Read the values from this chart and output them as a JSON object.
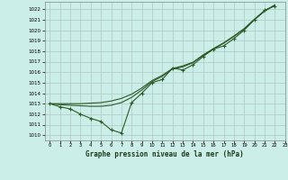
{
  "title": "Graphe pression niveau de la mer (hPa)",
  "background_color": "#cceee8",
  "grid_color": "#b0c8c4",
  "line_color": "#2d5a27",
  "xlim": [
    -0.5,
    23
  ],
  "ylim": [
    1009.5,
    1022.7
  ],
  "yticks": [
    1010,
    1011,
    1012,
    1013,
    1014,
    1015,
    1016,
    1017,
    1018,
    1019,
    1020,
    1021,
    1022
  ],
  "xticks": [
    0,
    1,
    2,
    3,
    4,
    5,
    6,
    7,
    8,
    9,
    10,
    11,
    12,
    13,
    14,
    15,
    16,
    17,
    18,
    19,
    20,
    21,
    22,
    23
  ],
  "observed_x": [
    0,
    1,
    2,
    3,
    4,
    5,
    6,
    7,
    8,
    9,
    10,
    11,
    12,
    13,
    14,
    15,
    16,
    17,
    18,
    19,
    20,
    21,
    22
  ],
  "observed_y": [
    1013.0,
    1012.7,
    1012.5,
    1012.0,
    1011.6,
    1011.3,
    1010.5,
    1010.2,
    1013.1,
    1014.0,
    1015.0,
    1015.3,
    1016.4,
    1016.2,
    1016.7,
    1017.5,
    1018.2,
    1018.5,
    1019.2,
    1020.0,
    1021.0,
    1021.9,
    1022.3
  ],
  "smooth1_x": [
    0,
    1,
    2,
    3,
    4,
    5,
    6,
    7,
    8,
    9,
    10,
    11,
    12,
    13,
    14,
    15,
    16,
    17,
    18,
    19,
    20,
    21,
    22
  ],
  "smooth1_y": [
    1013.0,
    1012.9,
    1012.85,
    1012.8,
    1012.75,
    1012.75,
    1012.85,
    1013.1,
    1013.6,
    1014.3,
    1015.1,
    1015.6,
    1016.3,
    1016.5,
    1016.9,
    1017.6,
    1018.2,
    1018.75,
    1019.4,
    1020.1,
    1021.0,
    1021.8,
    1022.4
  ],
  "smooth2_x": [
    0,
    1,
    2,
    3,
    4,
    5,
    6,
    7,
    8,
    9,
    10,
    11,
    12,
    13,
    14,
    15,
    16,
    17,
    18,
    19,
    20,
    21,
    22
  ],
  "smooth2_y": [
    1013.0,
    1013.0,
    1013.0,
    1013.0,
    1013.05,
    1013.1,
    1013.25,
    1013.5,
    1013.9,
    1014.5,
    1015.2,
    1015.7,
    1016.35,
    1016.6,
    1016.95,
    1017.65,
    1018.25,
    1018.8,
    1019.45,
    1020.15,
    1021.05,
    1021.85,
    1022.4
  ]
}
